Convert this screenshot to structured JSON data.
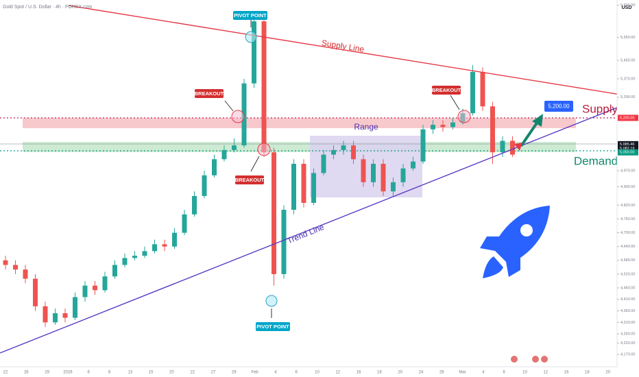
{
  "chart_data": {
    "type": "candlestick",
    "title": "Gold Spot / U.S. Dollar · 4h · FOREX.com",
    "currency": "USD",
    "open": [
      4580,
      4560,
      4540,
      4500,
      4380,
      4310,
      4350,
      4330,
      4420,
      4470,
      4450,
      4510,
      4560,
      4590,
      4600,
      4620,
      4650,
      4640,
      4700,
      4780,
      4860,
      4950,
      5020,
      5060,
      5080,
      5350,
      5620,
      5050,
      4520,
      4800,
      5000,
      4830,
      4960,
      5040,
      5060,
      5080,
      5020,
      4920,
      5000,
      4880,
      4920,
      4980,
      5010,
      5150,
      5170,
      5160,
      5180,
      5220,
      5400,
      5250,
      5050,
      5100
    ],
    "high": [
      4600,
      4580,
      4560,
      4520,
      4400,
      4370,
      4370,
      4440,
      4490,
      4490,
      4530,
      4580,
      4610,
      4620,
      4640,
      4670,
      4670,
      4720,
      4800,
      4880,
      4970,
      5040,
      5080,
      5110,
      5370,
      5660,
      5630,
      5070,
      4820,
      5020,
      5020,
      4980,
      5060,
      5080,
      5100,
      5100,
      5040,
      5020,
      5020,
      4940,
      5000,
      5030,
      5170,
      5190,
      5190,
      5200,
      5240,
      5430,
      5420,
      5270,
      5120,
      5120
    ],
    "low": [
      4540,
      4520,
      4480,
      4360,
      4290,
      4300,
      4310,
      4320,
      4400,
      4430,
      4440,
      4500,
      4550,
      4580,
      4590,
      4610,
      4620,
      4630,
      4690,
      4770,
      4850,
      4940,
      5010,
      5050,
      5070,
      5330,
      5030,
      4470,
      4500,
      4780,
      4810,
      4820,
      4950,
      5020,
      5040,
      5000,
      4900,
      4900,
      4860,
      4860,
      4900,
      4970,
      5000,
      5130,
      5140,
      5150,
      5170,
      5210,
      5230,
      5000,
      5030,
      5030
    ],
    "close": [
      4560,
      4540,
      4500,
      4380,
      4310,
      4350,
      4330,
      4420,
      4470,
      4450,
      4510,
      4560,
      4590,
      4600,
      4620,
      4650,
      4640,
      4700,
      4780,
      4860,
      4950,
      5020,
      5060,
      5080,
      5350,
      5620,
      5050,
      4520,
      4800,
      5000,
      4830,
      4960,
      5040,
      5060,
      5080,
      5020,
      4920,
      5000,
      4880,
      4920,
      4980,
      5010,
      5150,
      5170,
      5160,
      5180,
      5220,
      5400,
      5250,
      5050,
      5100,
      5040
    ],
    "up_color": "#26a69a",
    "down_color": "#ef5350",
    "ylim": [
      4117,
      5698
    ],
    "yticks": [
      {
        "value": 5690,
        "label": "5,690.00"
      },
      {
        "value": 5550,
        "label": "5,550.00"
      },
      {
        "value": 5450,
        "label": "5,450.00"
      },
      {
        "value": 5370,
        "label": "5,370.00"
      },
      {
        "value": 5290,
        "label": "5,290.00"
      },
      {
        "value": 4970,
        "label": "4,970.00"
      },
      {
        "value": 4900,
        "label": "4,900.00"
      },
      {
        "value": 4820,
        "label": "4,820.00"
      },
      {
        "value": 4760,
        "label": "4,760.00"
      },
      {
        "value": 4700,
        "label": "4,700.00"
      },
      {
        "value": 4640,
        "label": "4,640.00"
      },
      {
        "value": 4580,
        "label": "4,580.00"
      },
      {
        "value": 4520,
        "label": "4,520.00"
      },
      {
        "value": 4460,
        "label": "4,460.00"
      },
      {
        "value": 4410,
        "label": "4,410.00"
      },
      {
        "value": 4360,
        "label": "4,360.00"
      },
      {
        "value": 4310,
        "label": "4,310.00"
      },
      {
        "value": 4260,
        "label": "4,260.00"
      },
      {
        "value": 4220,
        "label": "4,220.00"
      },
      {
        "value": 4170,
        "label": "4,170.00"
      }
    ],
    "price_labels": [
      {
        "value": 5200,
        "label": "5,200.00",
        "color": "#f23645"
      },
      {
        "value": 5085.46,
        "label": "5,085.46",
        "color": "#131722"
      },
      {
        "value": 5082.19,
        "label": "5,082.19",
        "color": "#131722"
      },
      {
        "value": 5050,
        "label": "5,050.00",
        "color": "#089981"
      }
    ],
    "countdown": "01:01:08",
    "x_axis_labels": [
      "22",
      "26",
      "29",
      "2026",
      "6",
      "8",
      "13",
      "15",
      "20",
      "22",
      "27",
      "29",
      "Feb",
      "4",
      "6",
      "10",
      "12",
      "16",
      "18",
      "20",
      "24",
      "26",
      "Mar",
      "4",
      "6",
      "10",
      "12",
      "16",
      "18",
      "20"
    ],
    "annotations": {
      "supply_line": "Supply Line",
      "trend_line": "Trend Line",
      "range": "Range",
      "pivot_top": "PIVOT POINT",
      "pivot_bottom": "PIVOT POINT",
      "breakout_1": "BREAKOUT",
      "breakout_2": "BREAKOUT",
      "breakout_3": "BREAKOUT",
      "target": "5,200.00",
      "supply": "Supply",
      "demand": "Demand"
    }
  }
}
